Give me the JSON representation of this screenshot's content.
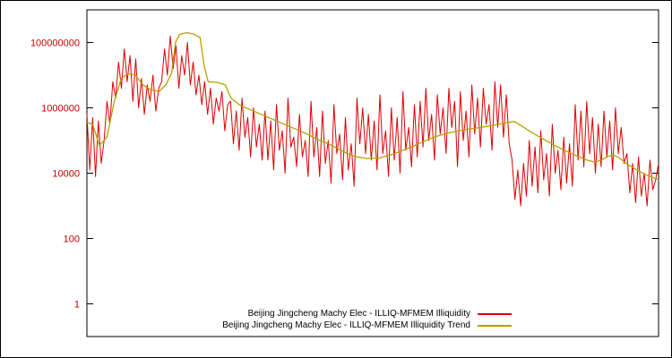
{
  "chart_data": {
    "type": "line",
    "title": "",
    "xlabel": "",
    "ylabel": "",
    "grid": false,
    "y_scale": "log",
    "ylim": [
      0.1,
      1000000000
    ],
    "yticks": [
      1,
      100,
      10000,
      1000000,
      100000000
    ],
    "ytick_labels": [
      "1",
      "100",
      "10000",
      "1000000",
      "100000000"
    ],
    "ytick_label_color": "#c00000",
    "legend_position": "bottom-center",
    "series": [
      {
        "name": "Beijing Jingcheng Machy Elec - ILLIQ-MFMEM Illiquidity",
        "color": "#dd0000",
        "values_log10": [
          5.8,
          4.1,
          5.7,
          3.9,
          5.6,
          4.3,
          5.0,
          6.2,
          5.5,
          6.8,
          6.3,
          7.4,
          6.6,
          7.8,
          6.8,
          7.6,
          6.2,
          7.5,
          6.0,
          6.9,
          5.8,
          6.7,
          6.2,
          7.0,
          5.9,
          6.6,
          6.8,
          7.8,
          7.0,
          8.2,
          7.2,
          7.9,
          6.6,
          7.6,
          7.0,
          8.0,
          6.7,
          7.4,
          6.4,
          7.0,
          6.1,
          6.8,
          5.8,
          6.6,
          5.5,
          6.3,
          5.9,
          6.5,
          5.3,
          6.1,
          6.2,
          4.9,
          5.9,
          4.7,
          6.3,
          5.1,
          5.7,
          4.5,
          6.0,
          4.8,
          5.5,
          4.4,
          5.9,
          4.4,
          5.6,
          4.1,
          6.1,
          4.7,
          5.3,
          4.0,
          6.3,
          4.8,
          5.1,
          4.2,
          5.8,
          4.5,
          5.0,
          3.9,
          6.2,
          4.5,
          5.4,
          3.9,
          5.9,
          4.3,
          5.0,
          3.7,
          6.1,
          4.6,
          5.2,
          3.8,
          5.7,
          4.1,
          4.9,
          3.6,
          6.3,
          4.9,
          6.0,
          4.6,
          5.8,
          4.4,
          5.6,
          4.1,
          6.4,
          4.6,
          5.3,
          3.9,
          6.0,
          4.4,
          5.7,
          4.0,
          6.5,
          4.7,
          5.4,
          4.2,
          6.1,
          4.5,
          6.2,
          4.8,
          6.6,
          5.0,
          5.8,
          4.4,
          6.4,
          5.2,
          6.0,
          4.6,
          6.6,
          5.4,
          6.2,
          4.2,
          6.5,
          5.0,
          5.9,
          4.5,
          6.7,
          5.2,
          6.3,
          4.8,
          6.6,
          5.5,
          6.1,
          4.7,
          6.8,
          5.4,
          6.7,
          5.1,
          6.4,
          4.9,
          4.4,
          3.2,
          4.1,
          3.0,
          4.3,
          3.3,
          5.0,
          3.6,
          4.8,
          3.4,
          5.3,
          3.8,
          4.6,
          3.3,
          5.5,
          4.0,
          4.7,
          3.5,
          5.1,
          3.7,
          4.9,
          3.6,
          6.1,
          4.4,
          5.9,
          4.2,
          6.2,
          4.6,
          5.7,
          4.0,
          5.5,
          4.2,
          5.9,
          4.5,
          5.6,
          4.1,
          6.0,
          4.6,
          5.4,
          4.3,
          4.6,
          3.4,
          4.3,
          3.1,
          4.5,
          3.3,
          4.0,
          3.0,
          4.4,
          3.5,
          3.8,
          4.3
        ]
      },
      {
        "name": "Beijing Jingcheng Machy Elec - ILLIQ-MFMEM Illiquidity Trend",
        "color": "#b8a000",
        "points_log10": [
          [
            0.0,
            5.55
          ],
          [
            0.01,
            5.5
          ],
          [
            0.022,
            4.85
          ],
          [
            0.035,
            5.1
          ],
          [
            0.048,
            6.2
          ],
          [
            0.06,
            6.9
          ],
          [
            0.072,
            7.05
          ],
          [
            0.085,
            7.0
          ],
          [
            0.098,
            6.7
          ],
          [
            0.112,
            6.55
          ],
          [
            0.126,
            6.5
          ],
          [
            0.138,
            6.7
          ],
          [
            0.148,
            7.05
          ],
          [
            0.155,
            8.0
          ],
          [
            0.162,
            8.25
          ],
          [
            0.175,
            8.3
          ],
          [
            0.188,
            8.25
          ],
          [
            0.198,
            8.15
          ],
          [
            0.205,
            7.3
          ],
          [
            0.212,
            6.8
          ],
          [
            0.228,
            6.78
          ],
          [
            0.242,
            6.7
          ],
          [
            0.252,
            6.3
          ],
          [
            0.268,
            6.08
          ],
          [
            0.285,
            5.95
          ],
          [
            0.305,
            5.8
          ],
          [
            0.325,
            5.65
          ],
          [
            0.345,
            5.5
          ],
          [
            0.365,
            5.35
          ],
          [
            0.385,
            5.2
          ],
          [
            0.405,
            5.02
          ],
          [
            0.425,
            4.88
          ],
          [
            0.442,
            4.72
          ],
          [
            0.458,
            4.58
          ],
          [
            0.472,
            4.5
          ],
          [
            0.49,
            4.45
          ],
          [
            0.51,
            4.46
          ],
          [
            0.53,
            4.55
          ],
          [
            0.55,
            4.68
          ],
          [
            0.57,
            4.82
          ],
          [
            0.59,
            4.98
          ],
          [
            0.61,
            5.12
          ],
          [
            0.63,
            5.22
          ],
          [
            0.65,
            5.3
          ],
          [
            0.672,
            5.36
          ],
          [
            0.695,
            5.42
          ],
          [
            0.715,
            5.48
          ],
          [
            0.735,
            5.55
          ],
          [
            0.748,
            5.58
          ],
          [
            0.76,
            5.45
          ],
          [
            0.778,
            5.25
          ],
          [
            0.798,
            5.05
          ],
          [
            0.818,
            4.85
          ],
          [
            0.838,
            4.68
          ],
          [
            0.858,
            4.52
          ],
          [
            0.875,
            4.4
          ],
          [
            0.888,
            4.34
          ],
          [
            0.9,
            4.4
          ],
          [
            0.912,
            4.52
          ],
          [
            0.922,
            4.55
          ],
          [
            0.932,
            4.46
          ],
          [
            0.945,
            4.28
          ],
          [
            0.96,
            4.12
          ],
          [
            0.978,
            3.95
          ],
          [
            1.0,
            3.8
          ]
        ]
      }
    ]
  },
  "legend": {
    "entries": [
      {
        "label": "Beijing Jingcheng Machy Elec - ILLIQ-MFMEM Illiquidity"
      },
      {
        "label": "Beijing Jingcheng Machy Elec - ILLIQ-MFMEM Illiquidity Trend"
      }
    ]
  }
}
